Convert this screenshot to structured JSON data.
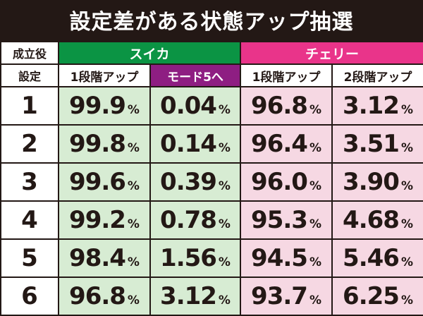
{
  "title": "設定差がある状態アップ抽選",
  "header": {
    "role_label": "成立役",
    "setting_label": "設定",
    "suika": "スイカ",
    "cherry": "チェリー",
    "sub_headers": [
      "1段階アップ",
      "モード5へ",
      "1段階アップ",
      "2段階アップ"
    ]
  },
  "percent_sign": "%",
  "rows": [
    {
      "setting": "1",
      "values": [
        "99.9",
        "0.04",
        "96.8",
        "3.12"
      ]
    },
    {
      "setting": "2",
      "values": [
        "99.8",
        "0.14",
        "96.4",
        "3.51"
      ]
    },
    {
      "setting": "3",
      "values": [
        "99.6",
        "0.39",
        "96.0",
        "3.90"
      ]
    },
    {
      "setting": "4",
      "values": [
        "99.2",
        "0.78",
        "95.3",
        "4.68"
      ]
    },
    {
      "setting": "5",
      "values": [
        "98.4",
        "1.56",
        "94.5",
        "5.46"
      ]
    },
    {
      "setting": "6",
      "values": [
        "96.8",
        "3.12",
        "93.7",
        "6.25"
      ]
    }
  ],
  "colors": {
    "suika_header": "#0b9444",
    "cherry_header": "#e9348a",
    "mode5_header": "#8e1e82",
    "suika_cell": "#d7ecd3",
    "cherry_cell": "#f6d8e3"
  }
}
